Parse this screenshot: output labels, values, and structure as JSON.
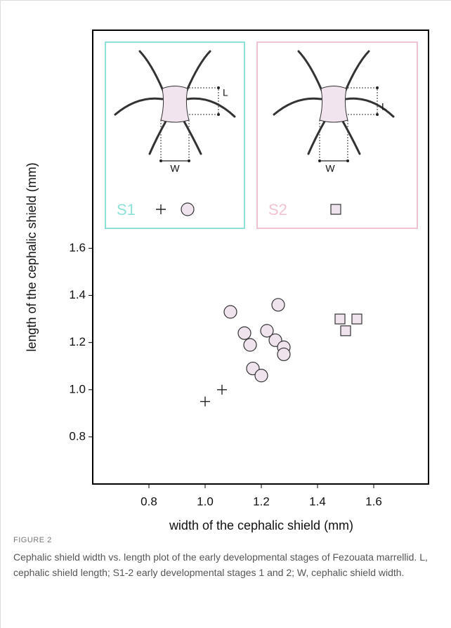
{
  "chart_data": {
    "type": "scatter",
    "xlabel": "width of the cephalic shield (mm)",
    "ylabel": "length of the cephalic shield (mm)",
    "xlim": [
      0.6,
      1.795
    ],
    "ylim": [
      0.6,
      2.525
    ],
    "xticks": [
      {
        "value": 0.8,
        "label": "0.8"
      },
      {
        "value": 1.0,
        "label": "1.0"
      },
      {
        "value": 1.2,
        "label": "1.2"
      },
      {
        "value": 1.4,
        "label": "1.4"
      },
      {
        "value": 1.6,
        "label": "1.6"
      }
    ],
    "yticks": [
      {
        "value": 0.8,
        "label": "0.8"
      },
      {
        "value": 1.0,
        "label": "1.0"
      },
      {
        "value": 1.2,
        "label": "1.2"
      },
      {
        "value": 1.4,
        "label": "1.4"
      },
      {
        "value": 1.6,
        "label": "1.6"
      }
    ],
    "series": [
      {
        "name": "S1",
        "marker": "plus",
        "color": "#222222",
        "x": [
          1.0,
          1.06
        ],
        "values": [
          0.95,
          1.0
        ]
      },
      {
        "marker": "circle",
        "color": "#efe3ee",
        "x": [
          1.09,
          1.14,
          1.16,
          1.17,
          1.2,
          1.22,
          1.25,
          1.26,
          1.28,
          1.28
        ],
        "values": [
          1.33,
          1.24,
          1.19,
          1.09,
          1.06,
          1.25,
          1.21,
          1.36,
          1.18,
          1.15
        ]
      },
      {
        "name": "S2",
        "marker": "square",
        "color": "#efe3ee",
        "x": [
          1.48,
          1.5,
          1.54
        ],
        "values": [
          1.3,
          1.25,
          1.3
        ]
      }
    ],
    "legend_groups": [
      {
        "name": "S1",
        "color": "#8fe0d6",
        "series": [
          0,
          1
        ],
        "length_label": "L",
        "width_label": "W"
      },
      {
        "name": "S2",
        "color": "#f1c3d2",
        "series": [
          2
        ],
        "length_label": "L",
        "width_label": "W"
      }
    ]
  },
  "caption": {
    "label": "FIGURE 2",
    "text": "Cephalic shield width vs. length plot of the early developmental stages of Fezouata marrellid. L, cephalic shield length; S1-2 early developmental stages 1 and 2; W, cephalic shield width."
  }
}
